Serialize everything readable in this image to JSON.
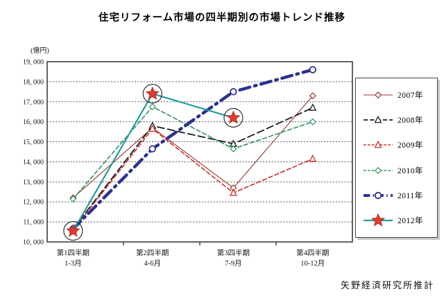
{
  "title": "住宅リフォーム市場の四半期別の市場トレンド推移",
  "footer": "矢野経済研究所推計",
  "chart_data": {
    "type": "line",
    "title": "住宅リフォーム市場の四半期別の市場トレンド推移",
    "ylabel": "(億円)",
    "legend_position": "right",
    "grid": "horizontal-dotted",
    "categories": [
      {
        "line1": "第1四半期",
        "line2": "1-3月"
      },
      {
        "line1": "第2四半期",
        "line2": "4-6月"
      },
      {
        "line1": "第3四半期",
        "line2": "7-9月"
      },
      {
        "line1": "第4四半期",
        "line2": "10-12月"
      }
    ],
    "y_axis": {
      "min": 10000,
      "max": 19000,
      "step": 1000,
      "tick_labels": [
        "10, 000",
        "11, 000",
        "12, 000",
        "13, 000",
        "14, 000",
        "15, 000",
        "16, 000",
        "17, 000",
        "18, 000",
        "19, 000"
      ]
    },
    "series": [
      {
        "name": "2007年",
        "color": "#97342e",
        "style": "solid-thin",
        "marker": "diamond",
        "values": [
          12200,
          15700,
          12700,
          17300
        ]
      },
      {
        "name": "2008年",
        "color": "#1a1a1a",
        "style": "long-dash",
        "marker": "triangle",
        "values": [
          10650,
          15800,
          14900,
          16700
        ]
      },
      {
        "name": "2009年",
        "color": "#cc2f2a",
        "style": "dash",
        "marker": "triangle",
        "values": [
          10600,
          15650,
          12450,
          14150
        ]
      },
      {
        "name": "2010年",
        "color": "#2d9460",
        "style": "dash",
        "marker": "diamond",
        "values": [
          12150,
          16750,
          14650,
          16000
        ]
      },
      {
        "name": "2011年",
        "color": "#2b3190",
        "style": "thick-dashdot",
        "marker": "circle-open",
        "values": [
          10650,
          14650,
          17500,
          18600
        ]
      },
      {
        "name": "2012年",
        "color": "#249c9c",
        "style": "solid",
        "marker": "star",
        "marker_color": "#e23b2c",
        "highlight_circle": true,
        "values": [
          10550,
          17400,
          16200,
          null
        ]
      }
    ]
  }
}
